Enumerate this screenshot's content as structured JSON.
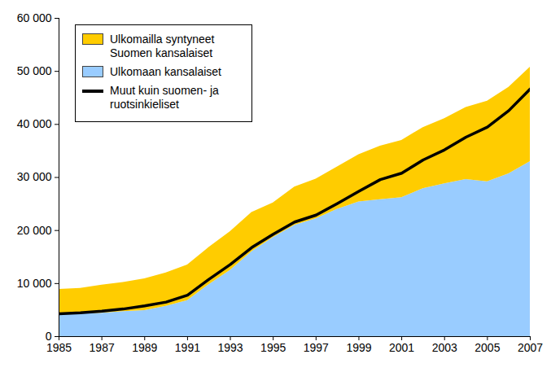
{
  "chart_data": {
    "type": "area",
    "stacked": true,
    "legend": "upper left",
    "x": [
      1985,
      1986,
      1987,
      1988,
      1989,
      1990,
      1991,
      1992,
      1993,
      1994,
      1995,
      1996,
      1997,
      1998,
      1999,
      2000,
      2001,
      2002,
      2003,
      2004,
      2005,
      2006,
      2007
    ],
    "xlim": [
      1985,
      2007
    ],
    "xticks": [
      1985,
      1987,
      1989,
      1991,
      1993,
      1995,
      1997,
      1999,
      2001,
      2003,
      2005,
      2007
    ],
    "ylim": [
      0,
      60000
    ],
    "yticks": [
      0,
      {
        "value": 10000,
        "label": "10 000"
      },
      {
        "value": 20000,
        "label": "20 000"
      },
      {
        "value": 30000,
        "label": "30 000"
      },
      {
        "value": 40000,
        "label": "40 000"
      },
      {
        "value": 50000,
        "label": "50 000"
      },
      {
        "value": 60000,
        "label": "60 000"
      }
    ],
    "series": [
      {
        "name": "Ulkomailla syntyneet Suomen kansalaiset",
        "type": "area",
        "color": "#ffcc00",
        "values": [
          4700,
          4800,
          5300,
          5500,
          6000,
          6300,
          6700,
          7000,
          7300,
          7400,
          6500,
          7200,
          7500,
          8000,
          8900,
          10100,
          10800,
          11500,
          12300,
          13600,
          15200,
          16300,
          17800
        ]
      },
      {
        "name": "Ulkomaan kansalaiset",
        "type": "area",
        "color": "#99ccff",
        "values": [
          4200,
          4300,
          4400,
          4700,
          4900,
          5700,
          6800,
          9800,
          12500,
          16000,
          18700,
          21000,
          22200,
          24000,
          25400,
          25800,
          26200,
          27900,
          28800,
          29600,
          29200,
          30700,
          33000
        ]
      },
      {
        "name": "Muut kuin suomen- ja ruotsinkieliset",
        "type": "line",
        "color": "#000000",
        "values": [
          4300,
          4500,
          4800,
          5200,
          5800,
          6500,
          7800,
          10800,
          13600,
          16800,
          19300,
          21600,
          22900,
          25100,
          27400,
          29600,
          30800,
          33300,
          35200,
          37600,
          39500,
          42600,
          46700
        ]
      }
    ]
  }
}
